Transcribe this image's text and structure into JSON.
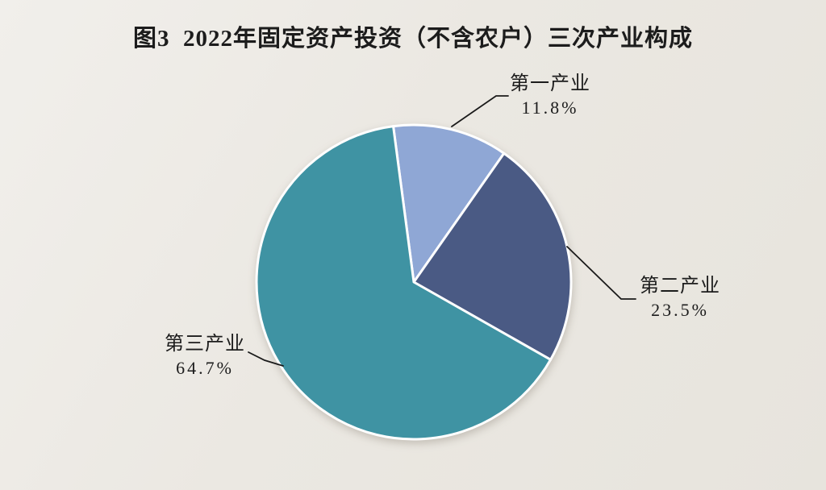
{
  "title": "图3  2022年固定资产投资（不含农户）三次产业构成",
  "chart_data": {
    "type": "pie",
    "title": "图3  2022年固定资产投资（不含农户）三次产业构成",
    "categories": [
      "第一产业",
      "第二产业",
      "第三产业"
    ],
    "values": [
      11.8,
      23.5,
      64.7
    ],
    "value_labels": [
      "11.8%",
      "23.5%",
      "64.7%"
    ],
    "colors": [
      "#8FA7D5",
      "#4A5A84",
      "#3F93A3"
    ],
    "slice_border_color": "#FFFFFF",
    "leader_line_color": "#1A1A1A",
    "background_color": "#EBE8E2",
    "start_angle_deg": -7.5,
    "direction": "clockwise",
    "legend_position": "none",
    "labels_outside": true
  }
}
